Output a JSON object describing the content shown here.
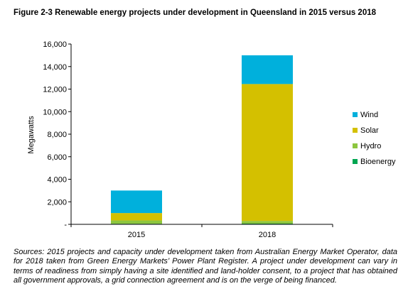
{
  "figure": {
    "title": "Figure 2-3 Renewable energy projects under development in Queensland in 2015 versus 2018",
    "sources": "Sources: 2015 projects and capacity under development taken from Australian Energy Market Operator, data for 2018 taken from Green Energy Markets’ Power Plant Register. A project under development can vary in terms of readiness from simply having a site identified and land-holder consent, to a project that has obtained all government approvals, a grid connection agreement and is on the verge of being financed."
  },
  "chart_data": {
    "type": "bar",
    "stacked": true,
    "title": "Figure 2-3 Renewable energy projects under development in Queensland in 2015 versus 2018",
    "xlabel": "",
    "ylabel": "Megawatts",
    "ylim": [
      0,
      16000
    ],
    "yticks": [
      0,
      2000,
      4000,
      6000,
      8000,
      10000,
      12000,
      14000,
      16000
    ],
    "ytick_labels": [
      "-",
      "2,000",
      "4,000",
      "6,000",
      "8,000",
      "10,000",
      "12,000",
      "14,000",
      "16,000"
    ],
    "categories": [
      "2015",
      "2018"
    ],
    "series": [
      {
        "name": "Bioenergy",
        "color": "#00a651",
        "values": [
          50,
          60
        ]
      },
      {
        "name": "Hydro",
        "color": "#8dc63f",
        "values": [
          300,
          240
        ]
      },
      {
        "name": "Solar",
        "color": "#d4c000",
        "values": [
          650,
          12150
        ]
      },
      {
        "name": "Wind",
        "color": "#00b0dc",
        "values": [
          2000,
          2550
        ]
      }
    ],
    "legend": {
      "position": "right",
      "order": [
        "Wind",
        "Solar",
        "Hydro",
        "Bioenergy"
      ]
    },
    "grid": false
  }
}
